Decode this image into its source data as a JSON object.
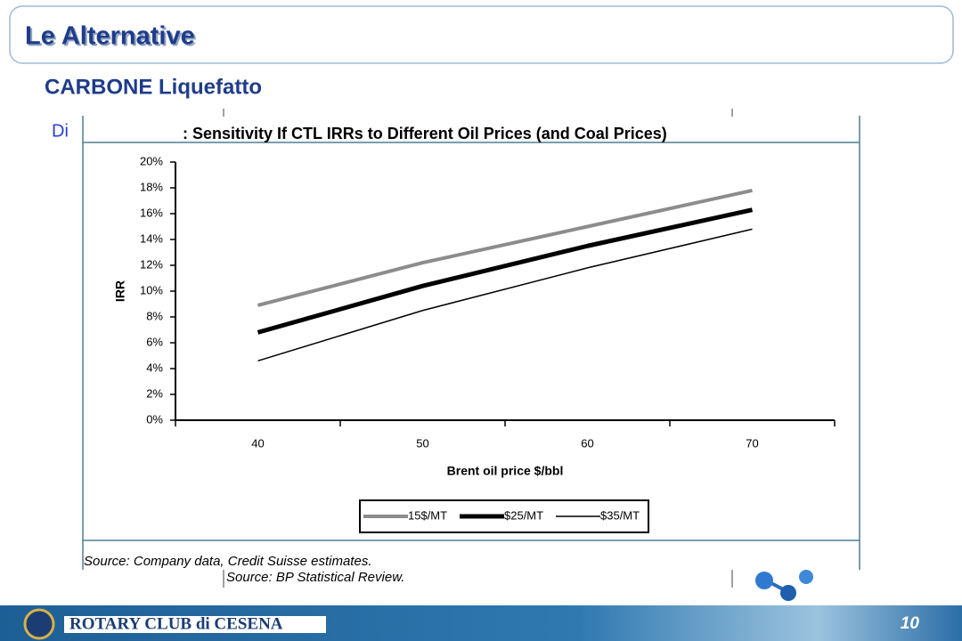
{
  "slide": {
    "title": "Le Alternative",
    "subtitle": "CARBONE Liquefatto",
    "partial_text": "Di",
    "source_1": "Source: Company data, Credit Suisse estimates.",
    "source_2": "Source: BP Statistical Review.",
    "footer": "ROTARY CLUB di CESENA",
    "page_number": "10"
  },
  "chart_data": {
    "type": "line",
    "title": ": Sensitivity If CTL IRRs to Different Oil Prices (and Coal Prices)",
    "x_label": "Brent oil price $/bbl",
    "y_label": "IRR",
    "categories": [
      "40",
      "50",
      "60",
      "70"
    ],
    "series": [
      {
        "name": "15$/MT",
        "color": "#8c8c8c",
        "width": 4,
        "values": [
          8.9,
          12.2,
          15.0,
          17.8
        ]
      },
      {
        "name": "$25/MT",
        "color": "#000000",
        "width": 5,
        "values": [
          6.8,
          10.4,
          13.5,
          16.3
        ]
      },
      {
        "name": "$35/MT",
        "color": "#000000",
        "width": 1.5,
        "values": [
          4.6,
          8.5,
          11.8,
          14.8
        ]
      }
    ],
    "ylim": [
      0,
      20
    ],
    "yticks": [
      {
        "value": 0,
        "label": "0%"
      },
      {
        "value": 2,
        "label": "2%"
      },
      {
        "value": 4,
        "label": "4%"
      },
      {
        "value": 6,
        "label": "6%"
      },
      {
        "value": 8,
        "label": "8%"
      },
      {
        "value": 10,
        "label": "10%"
      },
      {
        "value": 12,
        "label": "12%"
      },
      {
        "value": 14,
        "label": "14%"
      },
      {
        "value": 16,
        "label": "16%"
      },
      {
        "value": 18,
        "label": "18%"
      },
      {
        "value": 20,
        "label": "20%"
      }
    ],
    "legend": "bottom"
  }
}
